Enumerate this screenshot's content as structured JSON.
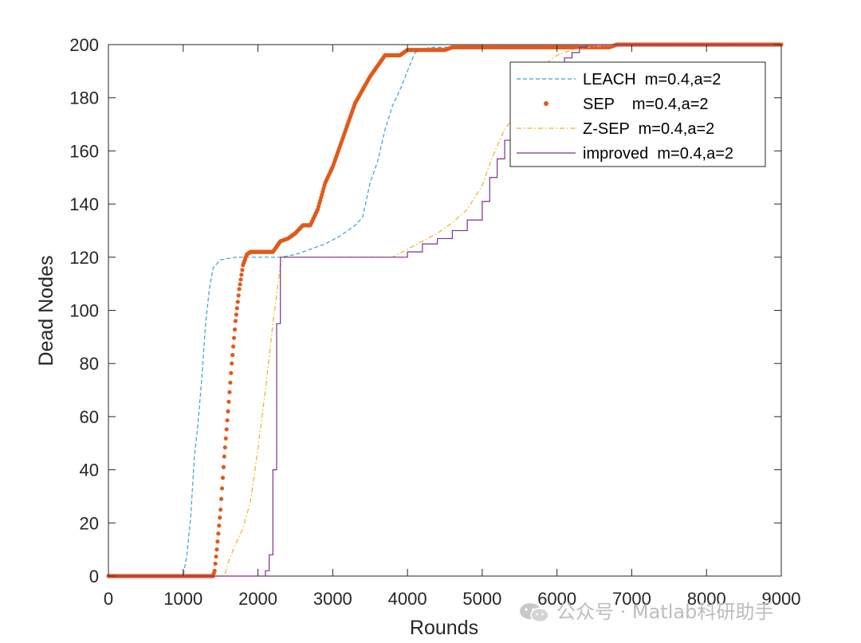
{
  "chart_data": {
    "type": "line",
    "xlabel": "Rounds",
    "ylabel": "Dead Nodes",
    "xlim": [
      0,
      9000
    ],
    "ylim": [
      0,
      200
    ],
    "xticks": [
      0,
      1000,
      2000,
      3000,
      4000,
      5000,
      6000,
      7000,
      8000,
      9000
    ],
    "yticks": [
      0,
      20,
      40,
      60,
      80,
      100,
      120,
      140,
      160,
      180,
      200
    ],
    "grid": false,
    "legend_position": "top-right",
    "series": [
      {
        "name": "LEACH  m=0.4,a=2",
        "style": "dashed",
        "color": "#3a9fd1",
        "points": [
          [
            0,
            0
          ],
          [
            1000,
            0
          ],
          [
            1050,
            8
          ],
          [
            1100,
            22
          ],
          [
            1150,
            45
          ],
          [
            1200,
            58
          ],
          [
            1250,
            75
          ],
          [
            1300,
            95
          ],
          [
            1350,
            108
          ],
          [
            1400,
            116
          ],
          [
            1500,
            119
          ],
          [
            1700,
            120
          ],
          [
            2000,
            120
          ],
          [
            2300,
            120
          ],
          [
            2500,
            121
          ],
          [
            2700,
            123
          ],
          [
            2900,
            125
          ],
          [
            3100,
            128
          ],
          [
            3300,
            132
          ],
          [
            3400,
            135
          ],
          [
            3500,
            148
          ],
          [
            3600,
            156
          ],
          [
            3700,
            168
          ],
          [
            3800,
            177
          ],
          [
            3900,
            183
          ],
          [
            4000,
            190
          ],
          [
            4100,
            197
          ],
          [
            4300,
            199
          ],
          [
            6700,
            199
          ],
          [
            6800,
            200
          ],
          [
            9000,
            200
          ]
        ]
      },
      {
        "name": "SEP    m=0.4,a=2",
        "style": "dots",
        "color": "#e05a1b",
        "points": [
          [
            0,
            0
          ],
          [
            1400,
            0
          ],
          [
            1420,
            2
          ],
          [
            1450,
            10
          ],
          [
            1500,
            25
          ],
          [
            1550,
            45
          ],
          [
            1600,
            62
          ],
          [
            1650,
            80
          ],
          [
            1700,
            96
          ],
          [
            1750,
            108
          ],
          [
            1800,
            117
          ],
          [
            1850,
            121
          ],
          [
            1900,
            122
          ],
          [
            2200,
            122
          ],
          [
            2250,
            124
          ],
          [
            2300,
            126
          ],
          [
            2400,
            127
          ],
          [
            2500,
            129
          ],
          [
            2600,
            132
          ],
          [
            2700,
            132
          ],
          [
            2800,
            138
          ],
          [
            2900,
            148
          ],
          [
            3000,
            154
          ],
          [
            3100,
            162
          ],
          [
            3200,
            170
          ],
          [
            3300,
            178
          ],
          [
            3400,
            183
          ],
          [
            3500,
            188
          ],
          [
            3600,
            192
          ],
          [
            3700,
            196
          ],
          [
            3900,
            196
          ],
          [
            4000,
            198
          ],
          [
            4500,
            198
          ],
          [
            4600,
            199
          ],
          [
            6700,
            199
          ],
          [
            6800,
            200
          ],
          [
            9000,
            200
          ]
        ]
      },
      {
        "name": "Z-SEP  m=0.4,a=2",
        "style": "dashdot",
        "color": "#edb120",
        "points": [
          [
            0,
            0
          ],
          [
            1550,
            0
          ],
          [
            1600,
            5
          ],
          [
            1700,
            12
          ],
          [
            1800,
            18
          ],
          [
            1900,
            28
          ],
          [
            2000,
            48
          ],
          [
            2100,
            70
          ],
          [
            2200,
            95
          ],
          [
            2300,
            117
          ],
          [
            2350,
            120
          ],
          [
            3800,
            120
          ],
          [
            4000,
            123
          ],
          [
            4200,
            126
          ],
          [
            4400,
            129
          ],
          [
            4600,
            133
          ],
          [
            4800,
            138
          ],
          [
            5000,
            147
          ],
          [
            5100,
            155
          ],
          [
            5200,
            162
          ],
          [
            5300,
            168
          ],
          [
            5400,
            172
          ],
          [
            5500,
            178
          ],
          [
            5600,
            183
          ],
          [
            5700,
            187
          ],
          [
            5800,
            191
          ],
          [
            5900,
            194
          ],
          [
            6000,
            196
          ],
          [
            6100,
            197
          ],
          [
            6200,
            198
          ],
          [
            6400,
            199
          ],
          [
            6800,
            200
          ],
          [
            9000,
            200
          ]
        ]
      },
      {
        "name": "improved  m=0.4,a=2",
        "style": "solid",
        "color": "#7e2f8e",
        "points": [
          [
            0,
            0
          ],
          [
            2050,
            0
          ],
          [
            2100,
            2
          ],
          [
            2150,
            8
          ],
          [
            2200,
            40
          ],
          [
            2250,
            95
          ],
          [
            2300,
            120
          ],
          [
            3800,
            120
          ],
          [
            4000,
            122
          ],
          [
            4200,
            125
          ],
          [
            4400,
            127
          ],
          [
            4600,
            130
          ],
          [
            4800,
            134
          ],
          [
            5000,
            141
          ],
          [
            5100,
            150
          ],
          [
            5200,
            157
          ],
          [
            5300,
            164
          ],
          [
            5400,
            169
          ],
          [
            5500,
            173
          ],
          [
            5600,
            178
          ],
          [
            5700,
            183
          ],
          [
            5800,
            187
          ],
          [
            5900,
            190
          ],
          [
            6000,
            193
          ],
          [
            6100,
            195
          ],
          [
            6200,
            197
          ],
          [
            6300,
            199
          ],
          [
            6400,
            200
          ],
          [
            9000,
            200
          ]
        ]
      }
    ]
  },
  "watermark": {
    "text": "公众号 · Matlab科研助手"
  }
}
